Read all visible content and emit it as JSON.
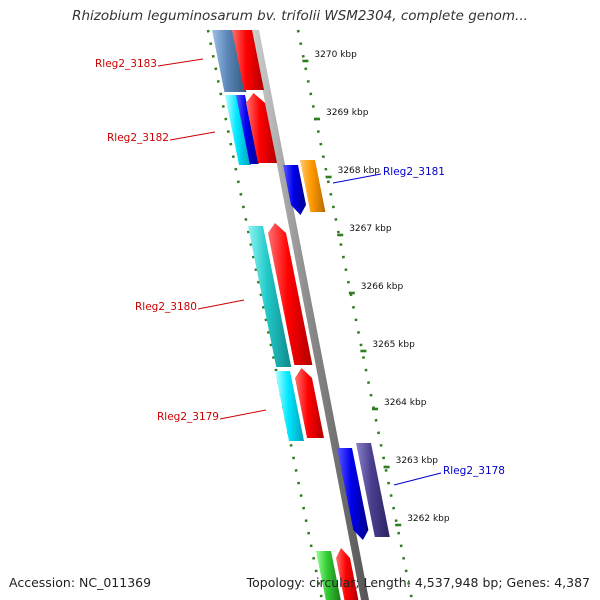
{
  "title": "Rhizobium leguminosarum bv. trifolii WSM2304, complete genom...",
  "accession": "Accession: NC_011369",
  "summary": "Topology: circular; Length: 4,537,948 bp; Genes: 4,387",
  "ticks": [
    "3270 kbp",
    "3269 kbp",
    "3268 kbp",
    "3267 kbp",
    "3266 kbp",
    "3265 kbp",
    "3264 kbp",
    "3263 kbp",
    "3262 kbp"
  ],
  "genes": [
    {
      "label": "Rleg2_3183",
      "strand": "reverse",
      "color": "#cc0000"
    },
    {
      "label": "Rleg2_3182",
      "strand": "reverse",
      "color": "#cc0000"
    },
    {
      "label": "Rleg2_3181",
      "strand": "forward",
      "color": "#0000cc"
    },
    {
      "label": "Rleg2_3180",
      "strand": "reverse",
      "color": "#cc0000"
    },
    {
      "label": "Rleg2_3179",
      "strand": "reverse",
      "color": "#cc0000"
    },
    {
      "label": "Rleg2_3178",
      "strand": "forward",
      "color": "#0000cc"
    }
  ],
  "colors": {
    "backbone": "#8a8a8a",
    "dots": "#2e7d1e",
    "cds_red": "#ff0000",
    "rna_cyan": "#22d3d3",
    "blue": "#0000ee",
    "navy": "#4a3f8f",
    "orange": "#ff9900",
    "steel": "#5b86b8",
    "green": "#33cc33"
  }
}
